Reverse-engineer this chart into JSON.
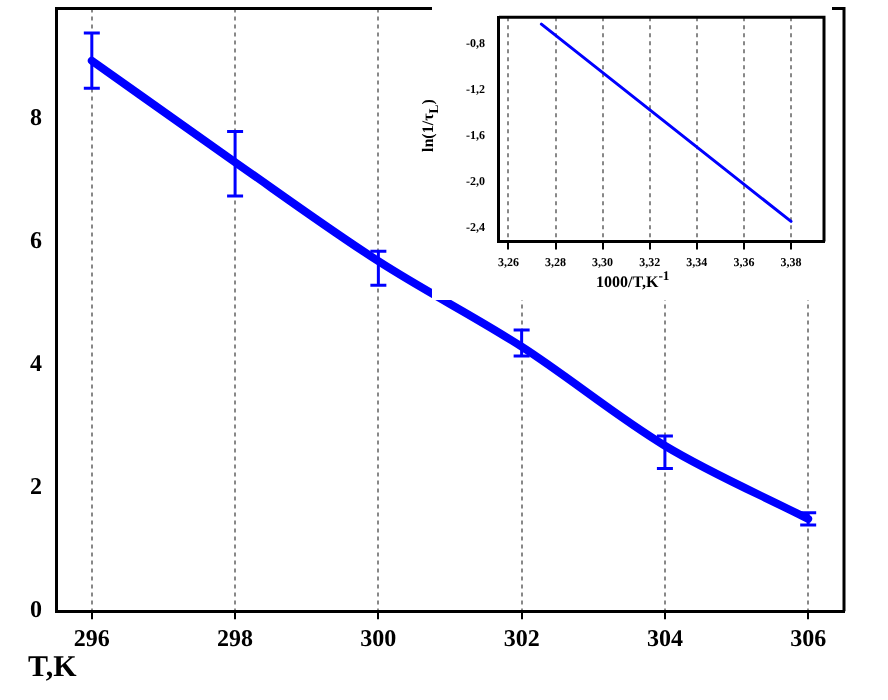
{
  "chart_data": [
    {
      "type": "line",
      "xlabel": "T,K",
      "x": [
        296,
        298,
        300,
        302,
        304,
        306
      ],
      "series": [
        {
          "color": "#0000ff",
          "values": [
            8.95,
            7.3,
            5.69,
            4.3,
            2.69,
            1.5
          ],
          "errors": [
            [
              8.5,
              9.4
            ],
            [
              6.75,
              7.8
            ],
            [
              5.3,
              5.85
            ],
            [
              4.15,
              4.57
            ],
            [
              2.32,
              2.85
            ],
            [
              1.4,
              1.6
            ]
          ]
        }
      ],
      "xlim": [
        295.5,
        306.5
      ],
      "xticks": [
        296,
        298,
        300,
        302,
        304,
        306
      ],
      "ylim": [
        0,
        9.8
      ],
      "yticks": [
        0,
        2,
        4,
        6,
        8
      ],
      "grid": "x",
      "marker": "none",
      "line_style": "solid"
    },
    {
      "type": "line",
      "xlabel": "1000/T,K$^{-1}$",
      "ylabel": "ln(1/τ$_{L}$)",
      "x": [
        3.274,
        3.38
      ],
      "series": [
        {
          "color": "#0000ff",
          "values": [
            -0.63,
            -2.34
          ]
        }
      ],
      "xlim": [
        3.256,
        3.394
      ],
      "xticks": [
        {
          "value": 3.26,
          "label": "3,26"
        },
        {
          "value": 3.28,
          "label": "3,28"
        },
        {
          "value": 3.3,
          "label": "3,30"
        },
        {
          "value": 3.32,
          "label": "3,32"
        },
        {
          "value": 3.34,
          "label": "3,34"
        },
        {
          "value": 3.36,
          "label": "3,36"
        },
        {
          "value": 3.38,
          "label": "3,38"
        }
      ],
      "ylim": [
        -2.515,
        -0.57
      ],
      "yticks": [
        {
          "value": -0.8,
          "label": "-0,8"
        },
        {
          "value": -1.2,
          "label": "-1,2"
        },
        {
          "value": -1.6,
          "label": "-1,6"
        },
        {
          "value": -2.0,
          "label": "-2,0"
        },
        {
          "value": -2.4,
          "label": "-2,4"
        }
      ],
      "grid": "x",
      "marker": "none",
      "line_style": "solid"
    }
  ]
}
